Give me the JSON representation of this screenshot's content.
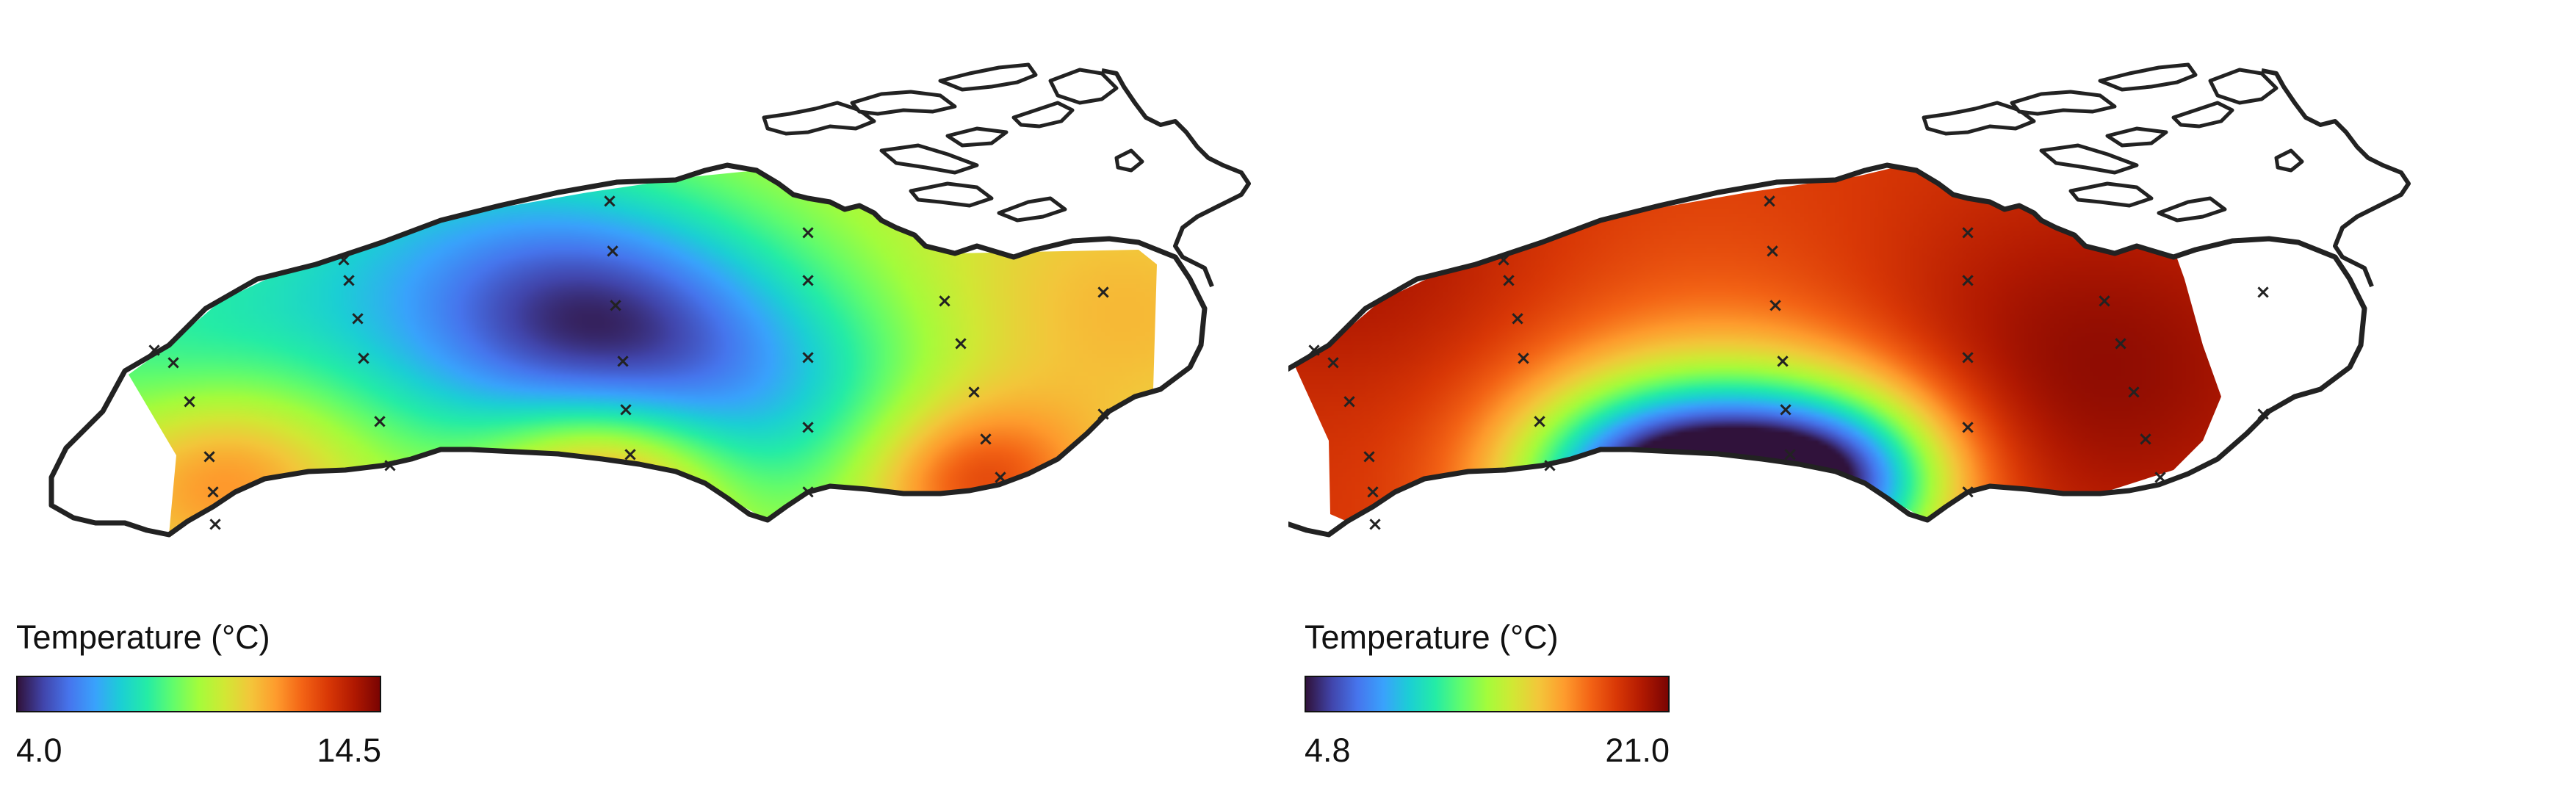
{
  "colormap": {
    "name": "turbo",
    "stops": [
      "#30123b",
      "#4145ab",
      "#4675ed",
      "#39a2fc",
      "#1bcfd4",
      "#24eca6",
      "#61fc6c",
      "#a4fc3b",
      "#d1e834",
      "#f3c63a",
      "#fe9b2d",
      "#f36315",
      "#d93806",
      "#b11901",
      "#7a0402"
    ]
  },
  "outline_color": "#222222",
  "marker_color": "#222222",
  "panels": [
    {
      "legend_title": "Temperature (°C)",
      "legend_min": "4.0",
      "legend_max": "14.5",
      "value_range": [
        4.0,
        14.5
      ],
      "field_description_level": "cool lake, warm along south shore",
      "field": {
        "base": 0.55,
        "sources": [
          {
            "u": 0.47,
            "v": 0.42,
            "strength": -0.34,
            "radius": 0.11
          },
          {
            "u": 0.3,
            "v": 0.3,
            "strength": -0.22,
            "radius": 0.16
          },
          {
            "u": 0.62,
            "v": 0.62,
            "strength": -0.22,
            "radius": 0.12
          },
          {
            "u": 0.08,
            "v": 0.55,
            "strength": -0.12,
            "radius": 0.1
          },
          {
            "u": 0.15,
            "v": 0.82,
            "strength": 0.25,
            "radius": 0.08
          },
          {
            "u": 0.48,
            "v": 0.86,
            "strength": 0.35,
            "radius": 0.07
          },
          {
            "u": 0.8,
            "v": 0.85,
            "strength": 0.3,
            "radius": 0.07
          },
          {
            "u": 0.92,
            "v": 0.4,
            "strength": 0.12,
            "radius": 0.12
          }
        ]
      }
    },
    {
      "legend_title": "Temperature (°C)",
      "legend_min": "4.8",
      "legend_max": "21.0",
      "value_range": [
        4.8,
        21.0
      ],
      "field_description_level": "warm lake, cold upwelling near south shore",
      "field": {
        "base": 0.86,
        "sources": [
          {
            "u": 0.46,
            "v": 0.88,
            "strength": -0.8,
            "radius": 0.1
          },
          {
            "u": 0.36,
            "v": 0.85,
            "strength": -0.4,
            "radius": 0.08
          },
          {
            "u": 0.55,
            "v": 0.83,
            "strength": -0.35,
            "radius": 0.07
          },
          {
            "u": 0.75,
            "v": 0.55,
            "strength": 0.12,
            "radius": 0.15
          },
          {
            "u": 0.12,
            "v": 0.25,
            "strength": 0.08,
            "radius": 0.12
          },
          {
            "u": 0.45,
            "v": 0.45,
            "strength": -0.05,
            "radius": 0.15
          }
        ]
      }
    }
  ]
}
